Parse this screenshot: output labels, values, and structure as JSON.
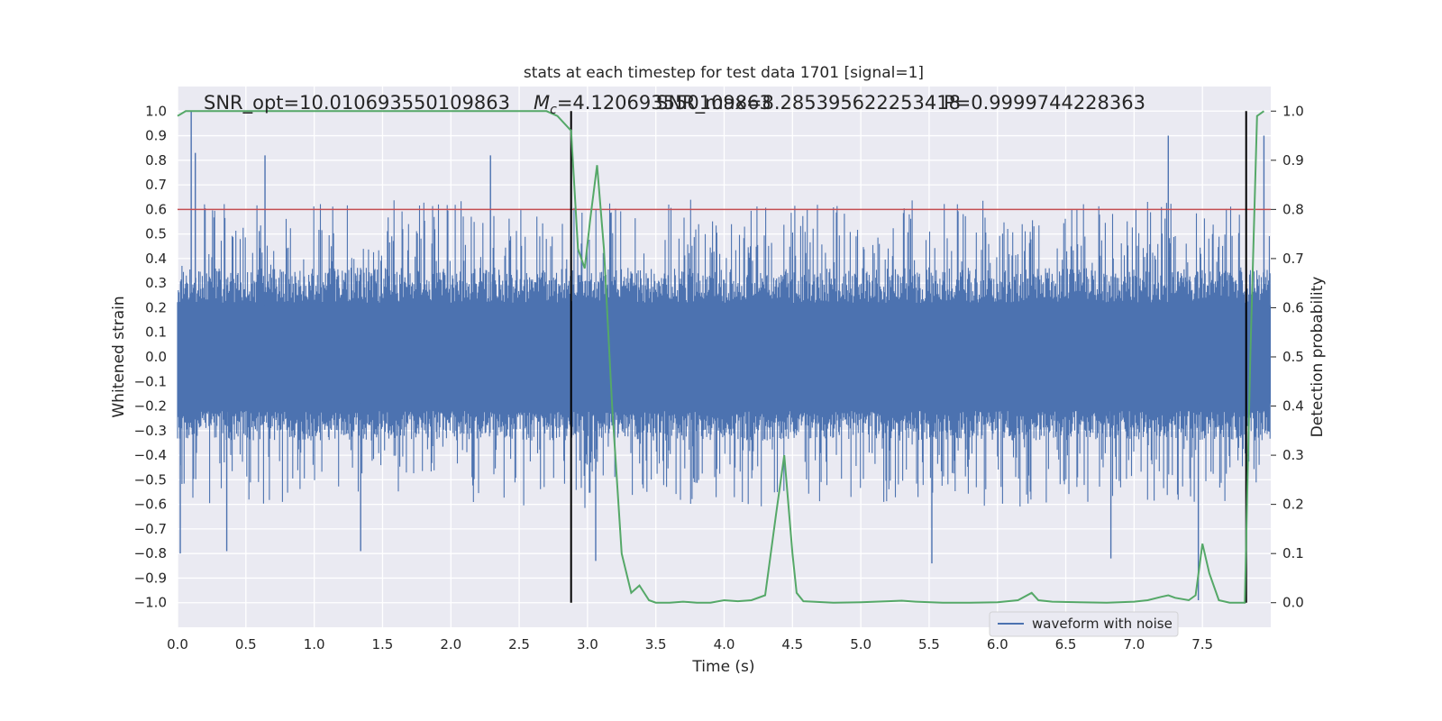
{
  "chart_data": {
    "type": "line",
    "title": "stats at each timestep for test data 1701 [signal=1]",
    "xlabel": "Time (s)",
    "ylabel": "Whitened strain",
    "ylabel_right": "Detection probability",
    "xlim": [
      0.0,
      8.0
    ],
    "ylim": [
      -1.1,
      1.1
    ],
    "ylim_right": [
      -0.05,
      1.05
    ],
    "x_ticks": [
      "0.0",
      "0.5",
      "1.0",
      "1.5",
      "2.0",
      "2.5",
      "3.0",
      "3.5",
      "4.0",
      "4.5",
      "5.0",
      "5.5",
      "6.0",
      "6.5",
      "7.0",
      "7.5"
    ],
    "x_tick_values": [
      0.0,
      0.5,
      1.0,
      1.5,
      2.0,
      2.5,
      3.0,
      3.5,
      4.0,
      4.5,
      5.0,
      5.5,
      6.0,
      6.5,
      7.0,
      7.5
    ],
    "y_ticks": [
      "1.0",
      "0.9",
      "0.8",
      "0.7",
      "0.6",
      "0.5",
      "0.4",
      "0.3",
      "0.2",
      "0.1",
      "0.0",
      "−0.1",
      "−0.2",
      "−0.3",
      "−0.4",
      "−0.5",
      "−0.6",
      "−0.7",
      "−0.8",
      "−0.9",
      "−1.0"
    ],
    "y_tick_values": [
      1.0,
      0.9,
      0.8,
      0.7,
      0.6,
      0.5,
      0.4,
      0.3,
      0.2,
      0.1,
      0.0,
      -0.1,
      -0.2,
      -0.3,
      -0.4,
      -0.5,
      -0.6,
      -0.7,
      -0.8,
      -0.9,
      -1.0
    ],
    "y_ticks_right": [
      "1.0",
      "0.9",
      "0.8",
      "0.7",
      "0.6",
      "0.5",
      "0.4",
      "0.3",
      "0.2",
      "0.1",
      "0.0"
    ],
    "y_tick_values_right": [
      1.0,
      0.9,
      0.8,
      0.7,
      0.6,
      0.5,
      0.4,
      0.3,
      0.2,
      0.1,
      0.0
    ],
    "annotations": {
      "snr_opt": "SNR_opt=10.010693550109863",
      "mc_prefix": "M",
      "mc_sub": "c",
      "mc_value": "=4.120693550109863",
      "snr_max": "SNR_max=8.285395622253418",
      "pmax": "P=0.9999744228363"
    },
    "legend": {
      "label": "waveform with noise",
      "placement": "lower-right"
    },
    "threshold_line": {
      "y": 0.8,
      "color": "#c44e52"
    },
    "vertical_lines": [
      2.88,
      7.82
    ],
    "colors": {
      "background": "#eaeaf2",
      "grid": "#ffffff",
      "strain": "#4c72b0",
      "probability": "#55a868",
      "threshold": "#c44e52",
      "vlines": "#000000"
    },
    "series": [
      {
        "name": "waveform with noise",
        "axis": "left",
        "x_range": [
          0.0,
          8.0
        ],
        "envelope_upper": 0.55,
        "envelope_lower": -0.5,
        "notable_peaks": [
          {
            "x": 0.1,
            "y": 1.0
          },
          {
            "x": 0.13,
            "y": 0.83
          },
          {
            "x": 0.64,
            "y": 0.82
          },
          {
            "x": 2.29,
            "y": 0.82
          },
          {
            "x": 7.25,
            "y": 0.9
          },
          {
            "x": 7.95,
            "y": 0.9
          },
          {
            "x": 0.02,
            "y": -0.8
          },
          {
            "x": 0.36,
            "y": -0.79
          },
          {
            "x": 1.34,
            "y": -0.79
          },
          {
            "x": 3.06,
            "y": -0.83
          },
          {
            "x": 5.52,
            "y": -0.84
          },
          {
            "x": 6.83,
            "y": -0.82
          },
          {
            "x": 7.47,
            "y": -0.99
          }
        ]
      },
      {
        "name": "",
        "axis": "right",
        "x": [
          0.0,
          0.06,
          0.15,
          0.5,
          1.0,
          1.5,
          2.0,
          2.5,
          2.7,
          2.78,
          2.88,
          2.93,
          2.98,
          3.02,
          3.07,
          3.12,
          3.18,
          3.25,
          3.32,
          3.38,
          3.45,
          3.5,
          3.6,
          3.7,
          3.8,
          3.9,
          4.0,
          4.1,
          4.2,
          4.3,
          4.38,
          4.44,
          4.5,
          4.53,
          4.58,
          4.65,
          4.8,
          5.0,
          5.2,
          5.3,
          5.4,
          5.6,
          5.8,
          6.0,
          6.15,
          6.25,
          6.3,
          6.4,
          6.6,
          6.8,
          7.0,
          7.1,
          7.2,
          7.25,
          7.3,
          7.4,
          7.45,
          7.5,
          7.55,
          7.62,
          7.7,
          7.81,
          7.85,
          7.9,
          7.95
        ],
        "y": [
          0.99,
          1.0,
          1.0,
          1.0,
          1.0,
          1.0,
          1.0,
          1.0,
          1.0,
          0.99,
          0.96,
          0.72,
          0.68,
          0.78,
          0.89,
          0.72,
          0.4,
          0.1,
          0.02,
          0.035,
          0.005,
          0.0,
          0.0,
          0.002,
          0.0,
          0.0,
          0.005,
          0.003,
          0.005,
          0.015,
          0.18,
          0.3,
          0.1,
          0.02,
          0.003,
          0.002,
          0.0,
          0.001,
          0.003,
          0.004,
          0.002,
          0.0,
          0.0,
          0.001,
          0.005,
          0.02,
          0.005,
          0.002,
          0.001,
          0.0,
          0.002,
          0.005,
          0.012,
          0.015,
          0.01,
          0.005,
          0.015,
          0.12,
          0.06,
          0.005,
          0.0,
          0.0,
          0.5,
          0.99,
          1.0
        ]
      }
    ]
  }
}
